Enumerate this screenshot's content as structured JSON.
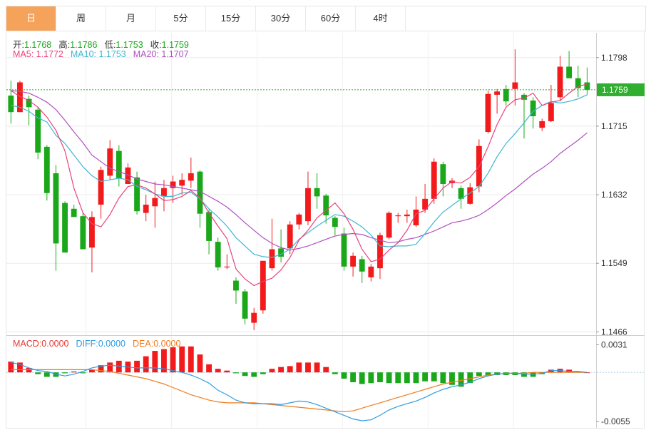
{
  "tabs": [
    "日",
    "周",
    "月",
    "5分",
    "15分",
    "30分",
    "60分",
    "4时"
  ],
  "active_tab": 0,
  "ohlc_line": [
    {
      "label": "开:",
      "value": "1.1768"
    },
    {
      "label": "高:",
      "value": "1.1786"
    },
    {
      "label": "低:",
      "value": "1.1753"
    },
    {
      "label": "收:",
      "value": "1.1759"
    }
  ],
  "ma_line": [
    {
      "label": "MA5: ",
      "value": "1.1772",
      "color": "#e8437c"
    },
    {
      "label": "MA10: ",
      "value": "1.1753",
      "color": "#3cb7d2"
    },
    {
      "label": "MA20: ",
      "value": "1.1707",
      "color": "#b14fc2"
    }
  ],
  "macd_line": [
    {
      "label": "MACD:",
      "value": "0.0000",
      "color": "#e53935"
    },
    {
      "label": "DIFF:",
      "value": "0.0000",
      "color": "#2f9be3"
    },
    {
      "label": "DEA:",
      "value": "0.0000",
      "color": "#f07b1c"
    }
  ],
  "current_price": "1.1759",
  "colors": {
    "up": "#f21a1a",
    "down": "#1aa81a",
    "ma5": "#e8437c",
    "ma10": "#3cb7d2",
    "ma20": "#b14fc2",
    "diff": "#2f9be3",
    "dea": "#f07b1c",
    "price_line": "#2fae2f"
  },
  "chart_data": [
    {
      "type": "candlestick",
      "y_ticks": [
        "1.1798",
        "1.1715",
        "1.1632",
        "1.1549",
        "1.1466"
      ],
      "ylim": [
        1.1462,
        1.1828
      ],
      "candles": [
        [
          1.1752,
          1.1732,
          1.177,
          1.1718
        ],
        [
          1.1732,
          1.1768,
          1.177,
          1.1732
        ],
        [
          1.1748,
          1.1738,
          1.1752,
          1.1716
        ],
        [
          1.1735,
          1.1683,
          1.1738,
          1.1675
        ],
        [
          1.169,
          1.1634,
          1.1692,
          1.1625
        ],
        [
          1.1658,
          1.1573,
          1.1668,
          1.154
        ],
        [
          1.1622,
          1.1562,
          1.1624,
          1.1562
        ],
        [
          1.1615,
          1.1605,
          1.162,
          1.1608
        ],
        [
          1.1606,
          1.1566,
          1.161,
          1.1566
        ],
        [
          1.1568,
          1.1605,
          1.1612,
          1.1538
        ],
        [
          1.162,
          1.1662,
          1.1666,
          1.1603
        ],
        [
          1.1655,
          1.1688,
          1.1698,
          1.165
        ],
        [
          1.1685,
          1.1652,
          1.1692,
          1.1642
        ],
        [
          1.1645,
          1.1665,
          1.167,
          1.1645
        ],
        [
          1.1653,
          1.1612,
          1.166,
          1.1608
        ],
        [
          1.161,
          1.162,
          1.1632,
          1.16
        ],
        [
          1.1618,
          1.1628,
          1.1648,
          1.1592
        ],
        [
          1.163,
          1.164,
          1.165,
          1.1612
        ],
        [
          1.164,
          1.1648,
          1.1655,
          1.1622
        ],
        [
          1.1643,
          1.165,
          1.1658,
          1.1632
        ],
        [
          1.1649,
          1.1658,
          1.1677,
          1.164
        ],
        [
          1.166,
          1.1609,
          1.1662,
          1.1592
        ],
        [
          1.1611,
          1.1576,
          1.1614,
          1.156
        ],
        [
          1.1575,
          1.1544,
          1.158,
          1.154
        ],
        [
          1.1544,
          1.1545,
          1.156,
          1.1542
        ],
        [
          1.1528,
          1.1516,
          1.1532,
          1.15
        ],
        [
          1.1515,
          1.1482,
          1.1518,
          1.1475
        ],
        [
          1.1477,
          1.1489,
          1.1495,
          1.1468
        ],
        [
          1.1492,
          1.1552,
          1.1552,
          1.1488
        ],
        [
          1.1543,
          1.1566,
          1.1603,
          1.154
        ],
        [
          1.1567,
          1.1557,
          1.159,
          1.155
        ],
        [
          1.1567,
          1.1596,
          1.16,
          1.156
        ],
        [
          1.1596,
          1.1608,
          1.161,
          1.159
        ],
        [
          1.16,
          1.164,
          1.166,
          1.1595
        ],
        [
          1.164,
          1.163,
          1.1658,
          1.1615
        ],
        [
          1.1631,
          1.1607,
          1.1633,
          1.1597
        ],
        [
          1.1604,
          1.1593,
          1.1606,
          1.1583
        ],
        [
          1.1585,
          1.1545,
          1.1592,
          1.154
        ],
        [
          1.1545,
          1.1558,
          1.1562,
          1.1533
        ],
        [
          1.1554,
          1.1539,
          1.1558,
          1.1525
        ],
        [
          1.1532,
          1.1545,
          1.1548,
          1.1527
        ],
        [
          1.1543,
          1.1583,
          1.1586,
          1.153
        ],
        [
          1.158,
          1.161,
          1.1612,
          1.1578
        ],
        [
          1.1606,
          1.1607,
          1.161,
          1.1598
        ],
        [
          1.1606,
          1.1608,
          1.1614,
          1.1598
        ],
        [
          1.1595,
          1.1614,
          1.163,
          1.1593
        ],
        [
          1.1614,
          1.1627,
          1.1645,
          1.161
        ],
        [
          1.1627,
          1.1672,
          1.1676,
          1.1621
        ],
        [
          1.1669,
          1.1645,
          1.1672,
          1.163
        ],
        [
          1.1646,
          1.1649,
          1.1652,
          1.164
        ],
        [
          1.164,
          1.1627,
          1.1643,
          1.1615
        ],
        [
          1.1621,
          1.1641,
          1.1646,
          1.162
        ],
        [
          1.1642,
          1.1691,
          1.1699,
          1.1635
        ],
        [
          1.1708,
          1.1754,
          1.1758,
          1.1706
        ],
        [
          1.1753,
          1.1757,
          1.176,
          1.173
        ],
        [
          1.176,
          1.1745,
          1.1765,
          1.174
        ],
        [
          1.176,
          1.1768,
          1.1808,
          1.174
        ],
        [
          1.1753,
          1.1747,
          1.1755,
          1.17
        ],
        [
          1.1746,
          1.1727,
          1.175,
          1.1712
        ],
        [
          1.1713,
          1.1721,
          1.1724,
          1.1709
        ],
        [
          1.1721,
          1.1743,
          1.1765,
          1.172
        ],
        [
          1.175,
          1.1787,
          1.18,
          1.1745
        ],
        [
          1.1787,
          1.1773,
          1.1806,
          1.1773
        ],
        [
          1.1773,
          1.1761,
          1.1788,
          1.175
        ],
        [
          1.1768,
          1.1759,
          1.1786,
          1.1753
        ]
      ],
      "ma5": [
        1.1758,
        1.1751,
        1.1746,
        1.1738,
        1.1726,
        1.171,
        1.1685,
        1.164,
        1.161,
        1.1597,
        1.1593,
        1.1608,
        1.1628,
        1.1642,
        1.1644,
        1.164,
        1.1633,
        1.1625,
        1.1626,
        1.163,
        1.1637,
        1.1628,
        1.161,
        1.1594,
        1.1579,
        1.1542,
        1.153,
        1.1522,
        1.1527,
        1.1531,
        1.1541,
        1.1556,
        1.1577,
        1.1589,
        1.1604,
        1.1613,
        1.1622,
        1.1609,
        1.159,
        1.1566,
        1.1551,
        1.1554,
        1.1565,
        1.1574,
        1.1589,
        1.1609,
        1.1613,
        1.1627,
        1.164,
        1.1648,
        1.1646,
        1.1653,
        1.1666,
        1.169,
        1.1717,
        1.1738,
        1.1747,
        1.1749,
        1.1755,
        1.174,
        1.1744,
        1.1746,
        1.1755,
        1.1763,
        1.1766
      ],
      "ma10": [
        1.174,
        1.1738,
        1.1733,
        1.1725,
        1.172,
        1.1704,
        1.1694,
        1.168,
        1.1666,
        1.1655,
        1.1648,
        1.165,
        1.1652,
        1.165,
        1.1642,
        1.1638,
        1.1633,
        1.163,
        1.163,
        1.1634,
        1.1635,
        1.1627,
        1.1615,
        1.1605,
        1.1594,
        1.158,
        1.157,
        1.156,
        1.1557,
        1.1556,
        1.156,
        1.1566,
        1.1578,
        1.1586,
        1.1594,
        1.1601,
        1.1608,
        1.1606,
        1.16,
        1.1593,
        1.1583,
        1.157,
        1.1569,
        1.157,
        1.157,
        1.1572,
        1.1585,
        1.1599,
        1.1611,
        1.1619,
        1.1627,
        1.1634,
        1.1642,
        1.1658,
        1.1678,
        1.1694,
        1.1706,
        1.1719,
        1.1733,
        1.174,
        1.1745,
        1.1743,
        1.1745,
        1.1748,
        1.1753
      ],
      "ma20": [
        1.1758,
        1.1757,
        1.1755,
        1.175,
        1.1744,
        1.1735,
        1.1722,
        1.1708,
        1.1695,
        1.168,
        1.1672,
        1.1664,
        1.166,
        1.1656,
        1.1651,
        1.1648,
        1.1645,
        1.1644,
        1.1642,
        1.164,
        1.1638,
        1.1636,
        1.163,
        1.1624,
        1.1617,
        1.1608,
        1.1598,
        1.1589,
        1.158,
        1.1573,
        1.1568,
        1.1565,
        1.1567,
        1.157,
        1.1574,
        1.1578,
        1.1582,
        1.1584,
        1.1585,
        1.1584,
        1.158,
        1.1577,
        1.1574,
        1.1575,
        1.1578,
        1.158,
        1.1584,
        1.1588,
        1.1593,
        1.1598,
        1.16,
        1.1603,
        1.1607,
        1.1614,
        1.1622,
        1.1631,
        1.1639,
        1.1648,
        1.1657,
        1.1664,
        1.1672,
        1.1682,
        1.169,
        1.1698,
        1.1707
      ]
    },
    {
      "type": "macd",
      "y_ticks": [
        "0.0031",
        "-0.0055"
      ],
      "ylim": [
        -0.0062,
        0.004
      ],
      "macd": [
        0.0012,
        0.0011,
        0.0005,
        -0.0002,
        -0.0005,
        -0.0005,
        -0.0001,
        0.0001,
        -0.0001,
        0.0003,
        0.0008,
        0.0011,
        0.0013,
        0.0012,
        0.0013,
        0.0018,
        0.0024,
        0.0026,
        0.0028,
        0.0029,
        0.0029,
        0.002,
        0.0009,
        0.0004,
        0.0002,
        -0.0001,
        -0.0004,
        -0.0005,
        -0.0002,
        0.0004,
        0.0006,
        0.0007,
        0.0011,
        0.0011,
        0.0011,
        0.0006,
        -0.0002,
        -0.0007,
        -0.0011,
        -0.0013,
        -0.0012,
        -0.0011,
        -0.0012,
        -0.0012,
        -0.0012,
        -0.0012,
        -0.001,
        -0.001,
        -0.0012,
        -0.0014,
        -0.0016,
        -0.0012,
        -0.0004,
        -0.0003,
        -0.0003,
        -0.0003,
        -0.0003,
        -0.0005,
        -0.0005,
        -0.0002,
        0.0003,
        0.0004,
        0.0003,
        0.0001,
        0.0
      ],
      "diff": [
        0.0011,
        0.0009,
        0.0005,
        0.0002,
        0.0001,
        -0.0002,
        -0.0004,
        -0.0002,
        0.0001,
        0.0005,
        0.0007,
        0.0008,
        0.0007,
        0.0006,
        0.0005,
        0.0005,
        0.0005,
        0.0004,
        0.0002,
        0.0,
        -0.0003,
        -0.0007,
        -0.0012,
        -0.002,
        -0.0025,
        -0.0031,
        -0.0034,
        -0.0035,
        -0.0035,
        -0.0035,
        -0.0036,
        -0.0034,
        -0.0032,
        -0.0033,
        -0.0036,
        -0.004,
        -0.0044,
        -0.0048,
        -0.0052,
        -0.0054,
        -0.0053,
        -0.0048,
        -0.0042,
        -0.0038,
        -0.0035,
        -0.0032,
        -0.0028,
        -0.0023,
        -0.0019,
        -0.0016,
        -0.0014,
        -0.0011,
        -0.0007,
        -0.0004,
        -0.0002,
        -0.0001,
        -0.0001,
        -0.0002,
        -0.0002,
        -0.0001,
        0.0002,
        0.0002,
        0.0001,
        0.0001,
        0.0
      ],
      "dea": [
        0.0003,
        0.0003,
        0.0003,
        0.0003,
        0.0003,
        0.0003,
        0.0003,
        0.0003,
        0.0003,
        0.0003,
        0.0002,
        0.0001,
        -0.0001,
        -0.0003,
        -0.0005,
        -0.0007,
        -0.001,
        -0.0013,
        -0.0017,
        -0.0021,
        -0.0025,
        -0.0028,
        -0.0031,
        -0.0033,
        -0.0034,
        -0.0034,
        -0.0034,
        -0.0034,
        -0.0035,
        -0.0036,
        -0.0037,
        -0.0038,
        -0.0039,
        -0.004,
        -0.0041,
        -0.0042,
        -0.0043,
        -0.0044,
        -0.0043,
        -0.004,
        -0.0037,
        -0.0034,
        -0.0031,
        -0.0028,
        -0.0025,
        -0.0022,
        -0.0019,
        -0.0016,
        -0.0013,
        -0.0011,
        -0.0009,
        -0.0007,
        -0.0005,
        -0.0003,
        -0.0002,
        -0.0001,
        -0.0001,
        -0.0001,
        0.0,
        0.0,
        0.0,
        0.0,
        0.0,
        0.0,
        0.0
      ]
    }
  ]
}
